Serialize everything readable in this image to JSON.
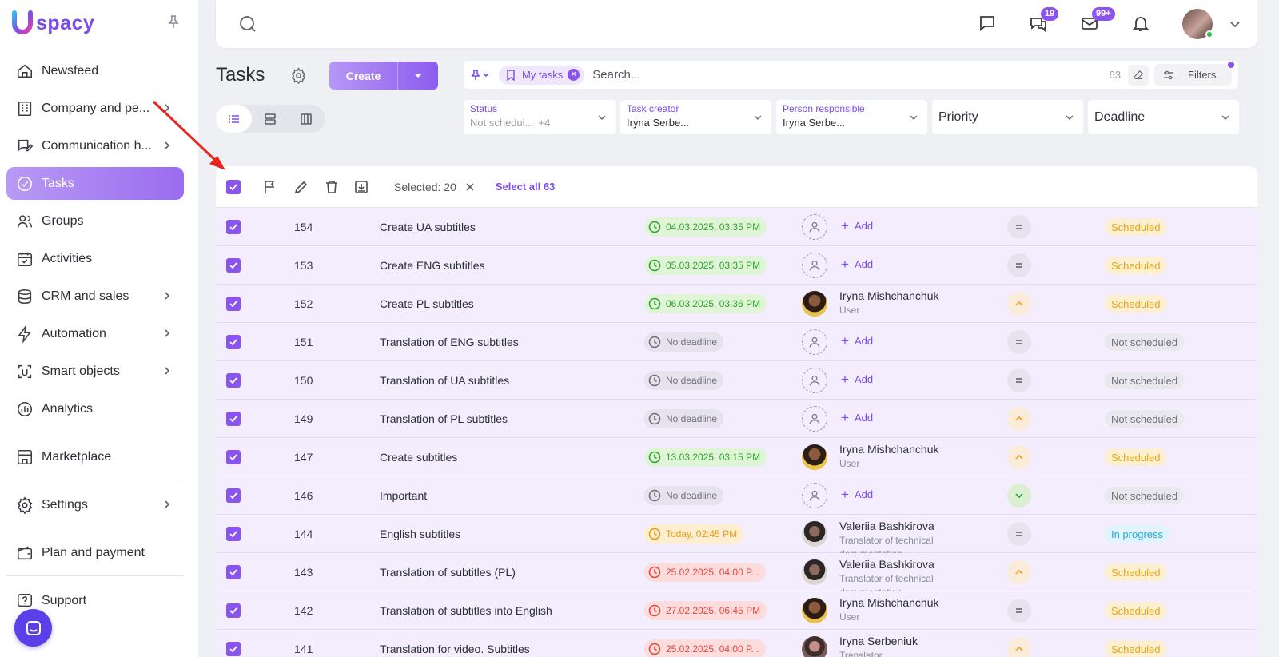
{
  "app": {
    "logo_text": "spacy",
    "logo_letter": "U"
  },
  "sidebar": {
    "items": [
      {
        "label": "Newsfeed",
        "icon": "home-icon",
        "has_chevron": false
      },
      {
        "label": "Company and pe...",
        "icon": "building-icon",
        "has_chevron": true
      },
      {
        "label": "Communication h...",
        "icon": "chat-edit-icon",
        "has_chevron": true
      },
      {
        "label": "Tasks",
        "icon": "check-circle-icon",
        "has_chevron": false,
        "active": true
      },
      {
        "label": "Groups",
        "icon": "users-icon",
        "has_chevron": false
      },
      {
        "label": "Activities",
        "icon": "calendar-icon",
        "has_chevron": false
      },
      {
        "label": "CRM and sales",
        "icon": "database-icon",
        "has_chevron": true
      },
      {
        "label": "Automation",
        "icon": "lightning-icon",
        "has_chevron": true
      },
      {
        "label": "Smart objects",
        "icon": "smart-object-icon",
        "has_chevron": true
      },
      {
        "label": "Analytics",
        "icon": "chart-icon",
        "has_chevron": false
      },
      {
        "label": "Marketplace",
        "icon": "store-icon",
        "has_chevron": false
      },
      {
        "label": "Settings",
        "icon": "gear-icon",
        "has_chevron": true
      },
      {
        "label": "Plan and payment",
        "icon": "wallet-icon",
        "has_chevron": false
      },
      {
        "label": "Support",
        "icon": "help-icon",
        "has_chevron": false
      }
    ]
  },
  "topbar": {
    "chat_badge": "19",
    "mail_badge": "99+"
  },
  "page": {
    "title": "Tasks",
    "create_label": "Create"
  },
  "search": {
    "chip_label": "My tasks",
    "placeholder": "Search...",
    "count": "63",
    "filters_label": "Filters"
  },
  "filters": {
    "status": {
      "label": "Status",
      "value": "Not schedul...",
      "extra": "+4"
    },
    "creator": {
      "label": "Task creator",
      "value": "Iryna Serbe..."
    },
    "responsible": {
      "label": "Person responsible",
      "value": "Iryna Serbe..."
    },
    "priority": {
      "placeholder": "Priority"
    },
    "deadline": {
      "placeholder": "Deadline"
    }
  },
  "toolbar": {
    "selected_text": "Selected: 20",
    "select_all_text": "Select all 63"
  },
  "colors": {
    "accent": "#8a55ef",
    "row_selected": "#f3edfd",
    "scheduled": "#e6a51e",
    "in_progress": "#27a9dc"
  },
  "tasks": [
    {
      "id": "154",
      "name": "Create UA subtitles",
      "deadline": "04.03.2025, 03:35 PM",
      "deadline_state": "green",
      "person": null,
      "add": "Add",
      "priority": "eq",
      "status": "Scheduled",
      "status_type": "sched"
    },
    {
      "id": "153",
      "name": "Create ENG subtitles",
      "deadline": "05.03.2025, 03:35 PM",
      "deadline_state": "green",
      "person": null,
      "add": "Add",
      "priority": "eq",
      "status": "Scheduled",
      "status_type": "sched"
    },
    {
      "id": "152",
      "name": "Create PL subtitles",
      "deadline": "06.03.2025, 03:36 PM",
      "deadline_state": "green",
      "person": {
        "name": "Iryna Mishchanchuk",
        "role": "User",
        "avatar": "iryna"
      },
      "priority": "up",
      "status": "Scheduled",
      "status_type": "sched"
    },
    {
      "id": "151",
      "name": "Translation of ENG subtitles",
      "deadline": "No deadline",
      "deadline_state": "grey",
      "person": null,
      "add": "Add",
      "priority": "eq",
      "status": "Not scheduled",
      "status_type": "nots"
    },
    {
      "id": "150",
      "name": "Translation of UA subtitles",
      "deadline": "No deadline",
      "deadline_state": "grey",
      "person": null,
      "add": "Add",
      "priority": "eq",
      "status": "Not scheduled",
      "status_type": "nots"
    },
    {
      "id": "149",
      "name": "Translation of PL subtitles",
      "deadline": "No deadline",
      "deadline_state": "grey",
      "person": null,
      "add": "Add",
      "priority": "up",
      "status": "Not scheduled",
      "status_type": "nots"
    },
    {
      "id": "147",
      "name": "Create subtitles",
      "deadline": "13.03.2025, 03:15 PM",
      "deadline_state": "green",
      "person": {
        "name": "Iryna Mishchanchuk",
        "role": "User",
        "avatar": "iryna"
      },
      "priority": "up",
      "status": "Scheduled",
      "status_type": "sched"
    },
    {
      "id": "146",
      "name": "Important",
      "deadline": "No deadline",
      "deadline_state": "grey",
      "person": null,
      "add": "Add",
      "priority": "down",
      "status": "Not scheduled",
      "status_type": "nots"
    },
    {
      "id": "144",
      "name": "English subtitles",
      "deadline": "Today, 02:45 PM",
      "deadline_state": "orange",
      "person": {
        "name": "Valeriia Bashkirova",
        "role": "Translator of technical documentation",
        "avatar": "val"
      },
      "priority": "eq",
      "status": "In progress",
      "status_type": "prog"
    },
    {
      "id": "143",
      "name": "Translation of subtitles (PL)",
      "deadline": "25.02.2025, 04:00 P...",
      "deadline_state": "red",
      "person": {
        "name": "Valeriia Bashkirova",
        "role": "Translator of technical documentation",
        "avatar": "val"
      },
      "priority": "up",
      "status": "Scheduled",
      "status_type": "sched"
    },
    {
      "id": "142",
      "name": "Translation of subtitles into English",
      "deadline": "27.02.2025, 06:45 PM",
      "deadline_state": "red",
      "person": {
        "name": "Iryna Mishchanchuk",
        "role": "User",
        "avatar": "iryna"
      },
      "priority": "eq",
      "status": "Scheduled",
      "status_type": "sched"
    },
    {
      "id": "141",
      "name": "Translation for video. Subtitles",
      "deadline": "25.02.2025, 04:00 P...",
      "deadline_state": "red",
      "person": {
        "name": "Iryna Serbeniuk",
        "role": "Translator",
        "avatar": "serb"
      },
      "priority": "up",
      "status": "Scheduled",
      "status_type": "sched"
    }
  ]
}
